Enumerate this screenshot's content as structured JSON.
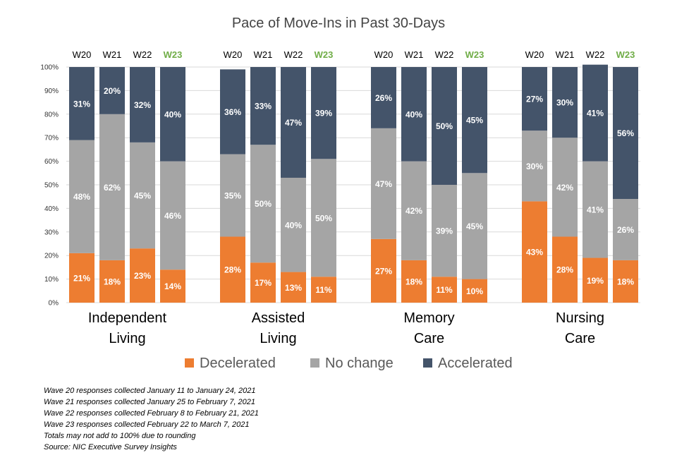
{
  "chart_data": {
    "type": "bar",
    "stacked": true,
    "title": "Pace of Move-Ins in Past 30-Days",
    "ylim": [
      0,
      100
    ],
    "y_ticks": [
      "0%",
      "10%",
      "20%",
      "30%",
      "40%",
      "50%",
      "60%",
      "70%",
      "80%",
      "90%",
      "100%"
    ],
    "grid": true,
    "legend_position": "bottom",
    "wave_labels": [
      "W20",
      "W21",
      "W22",
      "W23"
    ],
    "highlight_wave": "W23",
    "groups": [
      {
        "label_line1": "Independent",
        "label_line2": "Living"
      },
      {
        "label_line1": "Assisted",
        "label_line2": "Living"
      },
      {
        "label_line1": "Memory",
        "label_line2": "Care"
      },
      {
        "label_line1": "Nursing",
        "label_line2": "Care"
      }
    ],
    "series": [
      {
        "name": "Decelerated",
        "color": "#ED7D31",
        "values": [
          [
            21,
            18,
            23,
            14
          ],
          [
            28,
            17,
            13,
            11
          ],
          [
            27,
            18,
            11,
            10
          ],
          [
            43,
            28,
            19,
            18
          ]
        ]
      },
      {
        "name": "No change",
        "color": "#A5A5A5",
        "values": [
          [
            48,
            62,
            45,
            46
          ],
          [
            35,
            50,
            40,
            50
          ],
          [
            47,
            42,
            39,
            45
          ],
          [
            30,
            42,
            41,
            26
          ]
        ]
      },
      {
        "name": "Accelerated",
        "color": "#44546A",
        "values": [
          [
            31,
            20,
            32,
            40
          ],
          [
            36,
            33,
            47,
            39
          ],
          [
            26,
            40,
            50,
            45
          ],
          [
            27,
            30,
            41,
            56
          ]
        ]
      }
    ],
    "colors": {
      "highlight_label": "#70AD47",
      "grid": "#D9D9D9",
      "bar_label": "#FFFFFF"
    }
  },
  "notes": [
    "Wave 20 responses collected January 11 to January 24, 2021",
    "Wave 21 responses collected January 25 to February 7, 2021",
    "Wave 22 responses collected February 8 to February 21, 2021",
    "Wave 23 responses collected February 22 to March 7, 2021",
    "Totals may not add to 100% due to rounding",
    "Source: NIC Executive Survey Insights"
  ]
}
